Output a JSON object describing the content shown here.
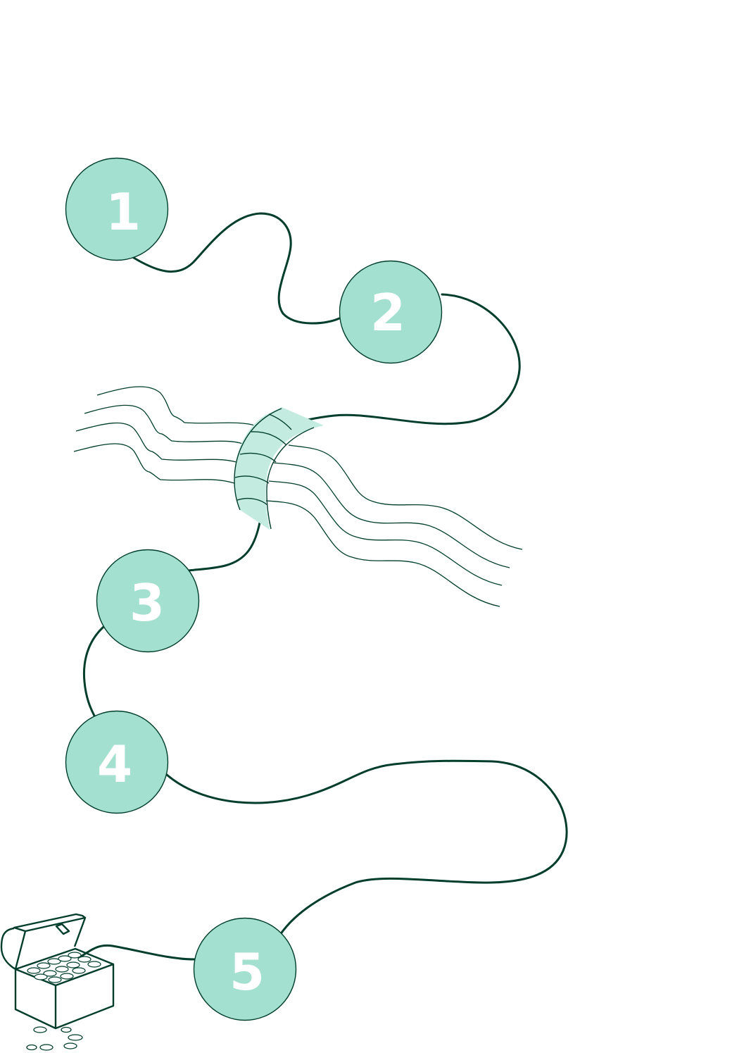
{
  "diagram": {
    "colors": {
      "line": "#003d2b",
      "circle_fill": "#a3e0d0",
      "bridge_fill": "#c3ebe0",
      "label": "#ffffff",
      "background": "#ffffff"
    },
    "steps": [
      {
        "label": "1"
      },
      {
        "label": "2"
      },
      {
        "label": "3"
      },
      {
        "label": "4"
      },
      {
        "label": "5"
      }
    ],
    "icons": [
      "river-waves",
      "bridge",
      "treasure-chest-icon",
      "coins"
    ]
  }
}
